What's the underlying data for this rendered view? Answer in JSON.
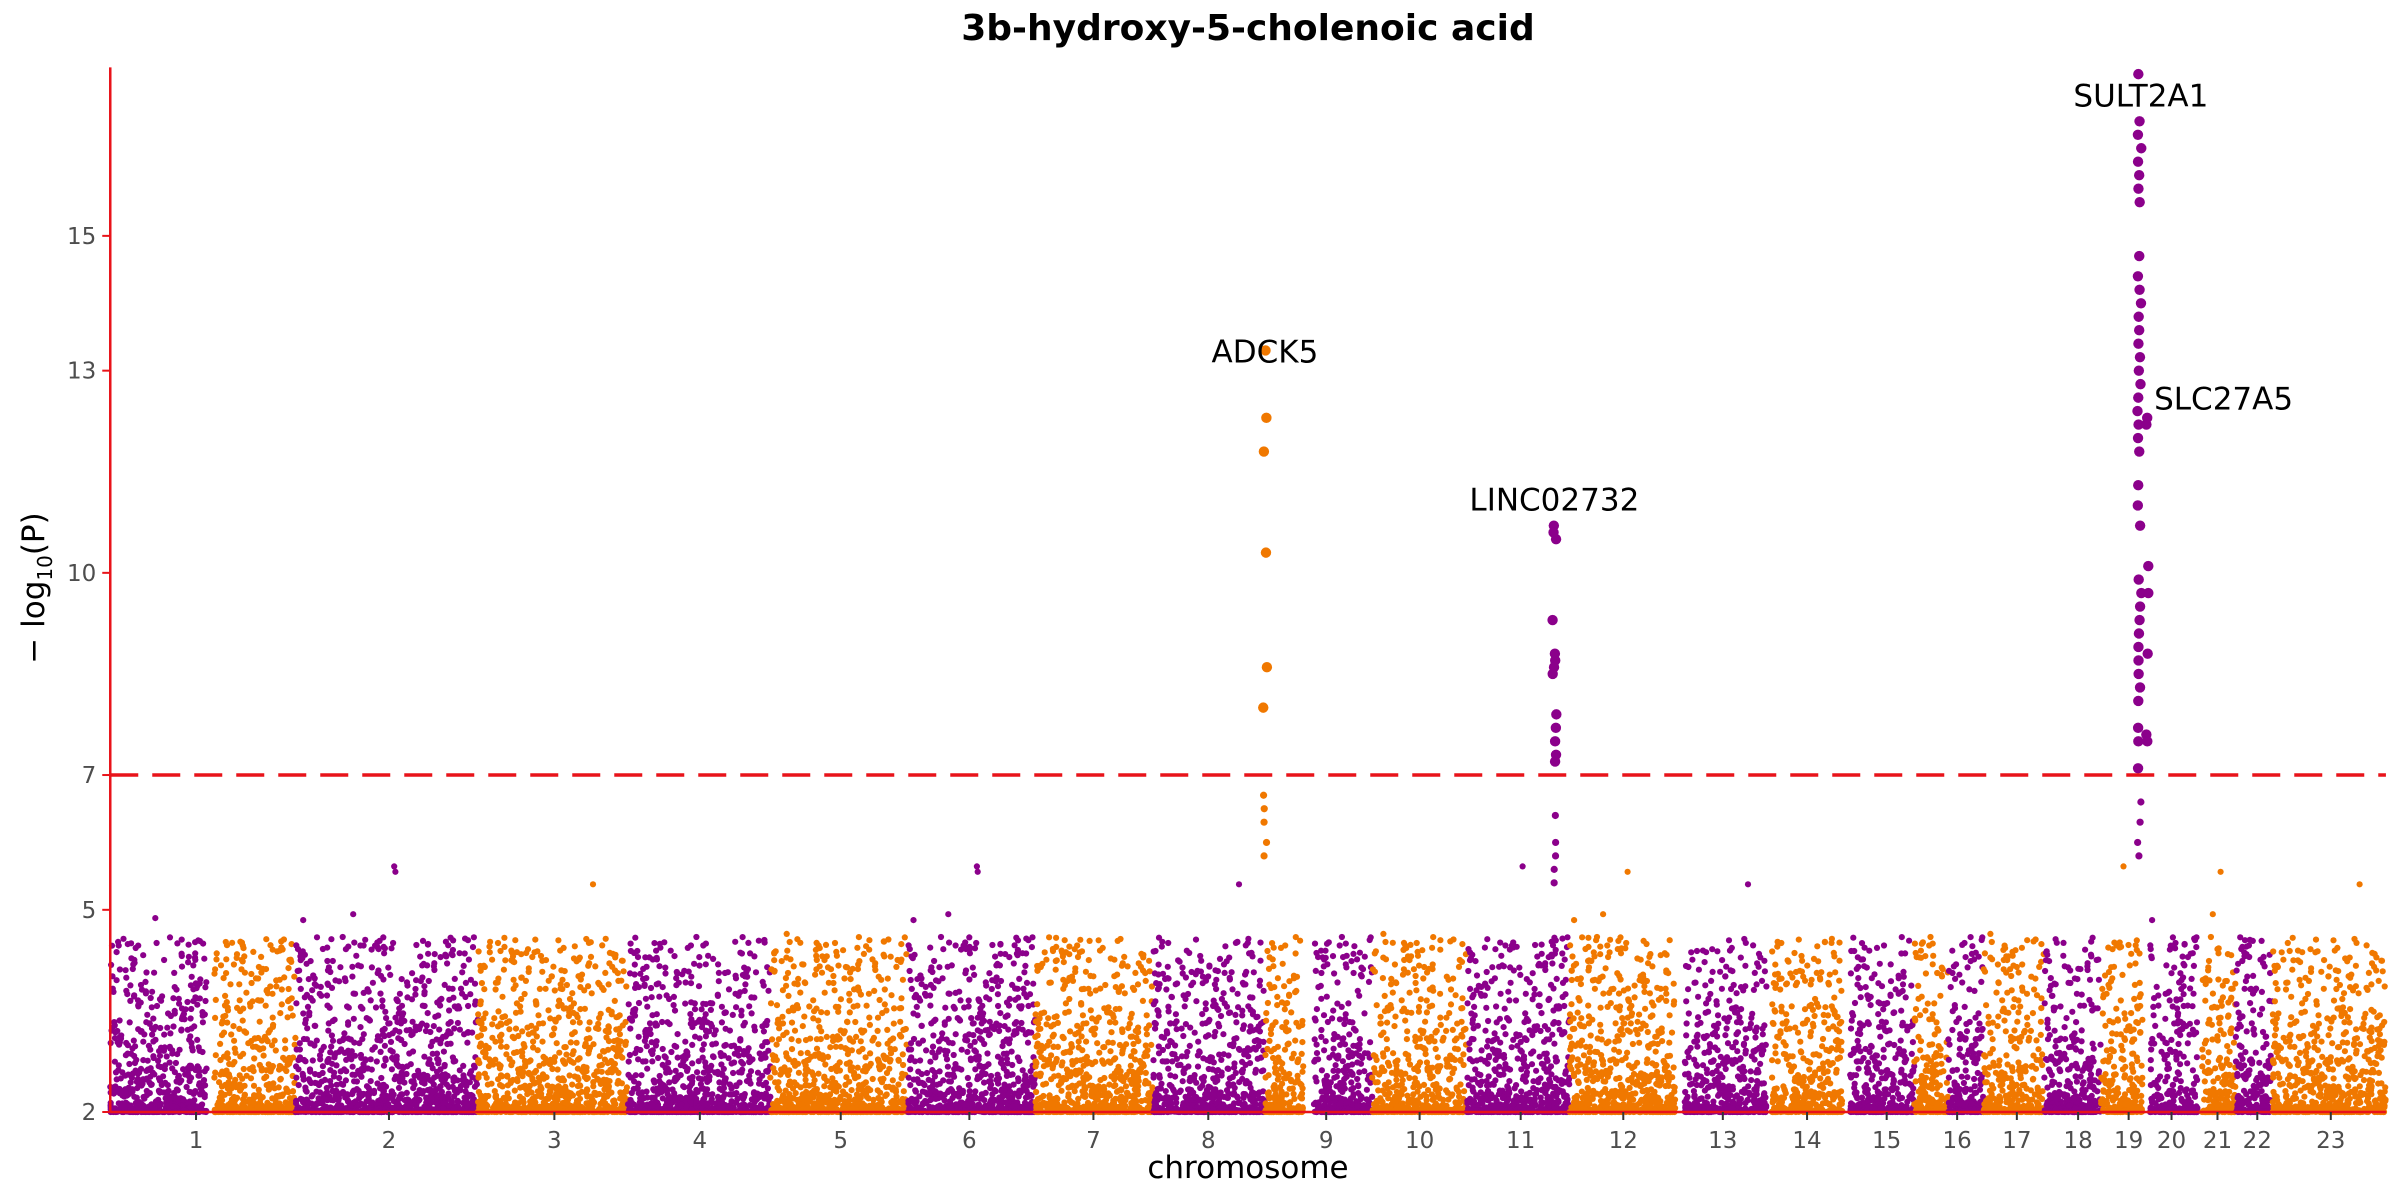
{
  "chart_data": {
    "type": "scatter",
    "title": "3b-hydroxy-5-cholenoic acid",
    "xlabel": "chromosome",
    "ylabel_main": "− log",
    "ylabel_sub": "10",
    "ylabel_tail": "(P)",
    "ylim": [
      2,
      17.5
    ],
    "yticks": [
      2,
      5,
      7,
      10,
      13,
      15
    ],
    "threshold": 7,
    "colors": {
      "odd": "#8b008b",
      "even": "#f07800",
      "axis": "#e8131a",
      "threshold": "#e8131a"
    },
    "chromosomes": [
      {
        "label": "1",
        "center": 128
      },
      {
        "label": "2",
        "center": 254
      },
      {
        "label": "3",
        "center": 362
      },
      {
        "label": "4",
        "center": 457
      },
      {
        "label": "5",
        "center": 549
      },
      {
        "label": "6",
        "center": 633
      },
      {
        "label": "7",
        "center": 714
      },
      {
        "label": "8",
        "center": 789
      },
      {
        "label": "9",
        "center": 866
      },
      {
        "label": "10",
        "center": 927
      },
      {
        "label": "11",
        "center": 993
      },
      {
        "label": "12",
        "center": 1060
      },
      {
        "label": "13",
        "center": 1125
      },
      {
        "label": "14",
        "center": 1180
      },
      {
        "label": "15",
        "center": 1232
      },
      {
        "label": "16",
        "center": 1278
      },
      {
        "label": "17",
        "center": 1317
      },
      {
        "label": "18",
        "center": 1357
      },
      {
        "label": "19",
        "center": 1390
      },
      {
        "label": "20",
        "center": 1418
      },
      {
        "label": "21",
        "center": 1448
      },
      {
        "label": "22",
        "center": 1474
      },
      {
        "label": "23",
        "center": 1522
      }
    ],
    "chromosome_spans": [
      [
        72,
        135
      ],
      [
        140,
        193
      ],
      [
        193,
        312
      ],
      [
        312,
        410
      ],
      [
        410,
        503
      ],
      [
        503,
        593
      ],
      [
        593,
        676
      ],
      [
        676,
        753
      ],
      [
        753,
        826
      ],
      [
        826,
        851
      ],
      [
        858,
        896
      ],
      [
        896,
        958
      ],
      [
        958,
        1025
      ],
      [
        1025,
        1094
      ],
      [
        1100,
        1154
      ],
      [
        1157,
        1203
      ],
      [
        1208,
        1250
      ],
      [
        1250,
        1272
      ],
      [
        1272,
        1295
      ],
      [
        1295,
        1335
      ],
      [
        1335,
        1372
      ],
      [
        1372,
        1399
      ],
      [
        1404,
        1435
      ],
      [
        1438,
        1460
      ],
      [
        1460,
        1484
      ],
      [
        1484,
        1558
      ]
    ],
    "peaks": [
      {
        "label": "ADCK5",
        "x": 826,
        "top": 13.3,
        "color": "even",
        "values": [
          13.3,
          12.3,
          11.8,
          10.3,
          8.6,
          8.0,
          6.7,
          6.5,
          6.3,
          6.0,
          5.8
        ]
      },
      {
        "label": "LINC02732",
        "x": 1015,
        "top": 10.7,
        "color": "odd",
        "values": [
          10.7,
          10.6,
          10.5,
          9.3,
          8.8,
          8.7,
          8.6,
          8.5,
          7.9,
          7.7,
          7.5,
          7.3,
          7.2,
          6.4,
          6.0,
          5.8,
          5.6,
          5.4
        ]
      },
      {
        "label": "SULT2A1",
        "x": 1397,
        "top": 17.4,
        "color": "odd",
        "values": [
          17.4,
          16.7,
          16.5,
          16.3,
          16.1,
          15.9,
          15.7,
          15.5,
          14.7,
          14.4,
          14.2,
          14.0,
          13.8,
          13.6,
          13.4,
          13.2,
          13.0,
          12.8,
          12.6,
          12.4,
          12.2,
          12.0,
          11.8,
          11.3,
          11.0,
          10.7,
          9.9,
          9.7,
          9.5,
          9.3,
          9.1,
          8.9,
          8.7,
          8.5,
          8.3,
          8.1,
          7.7,
          7.5,
          7.1,
          6.6,
          6.3,
          6.0,
          5.8
        ]
      },
      {
        "label": "SLC27A5",
        "x": 1402,
        "top": 12.3,
        "color": "odd",
        "values": [
          12.3,
          12.2,
          10.1,
          9.7,
          8.8,
          7.6,
          7.5
        ]
      }
    ],
    "annotations": [
      {
        "label": "ADCK5",
        "x": 826,
        "y": 13.3
      },
      {
        "label": "LINC02732",
        "x": 1015,
        "y": 11.1
      },
      {
        "label": "SULT2A1",
        "x": 1398,
        "y": 17.1
      },
      {
        "label": "SLC27A5",
        "x": 1452,
        "y": 12.6
      }
    ]
  }
}
